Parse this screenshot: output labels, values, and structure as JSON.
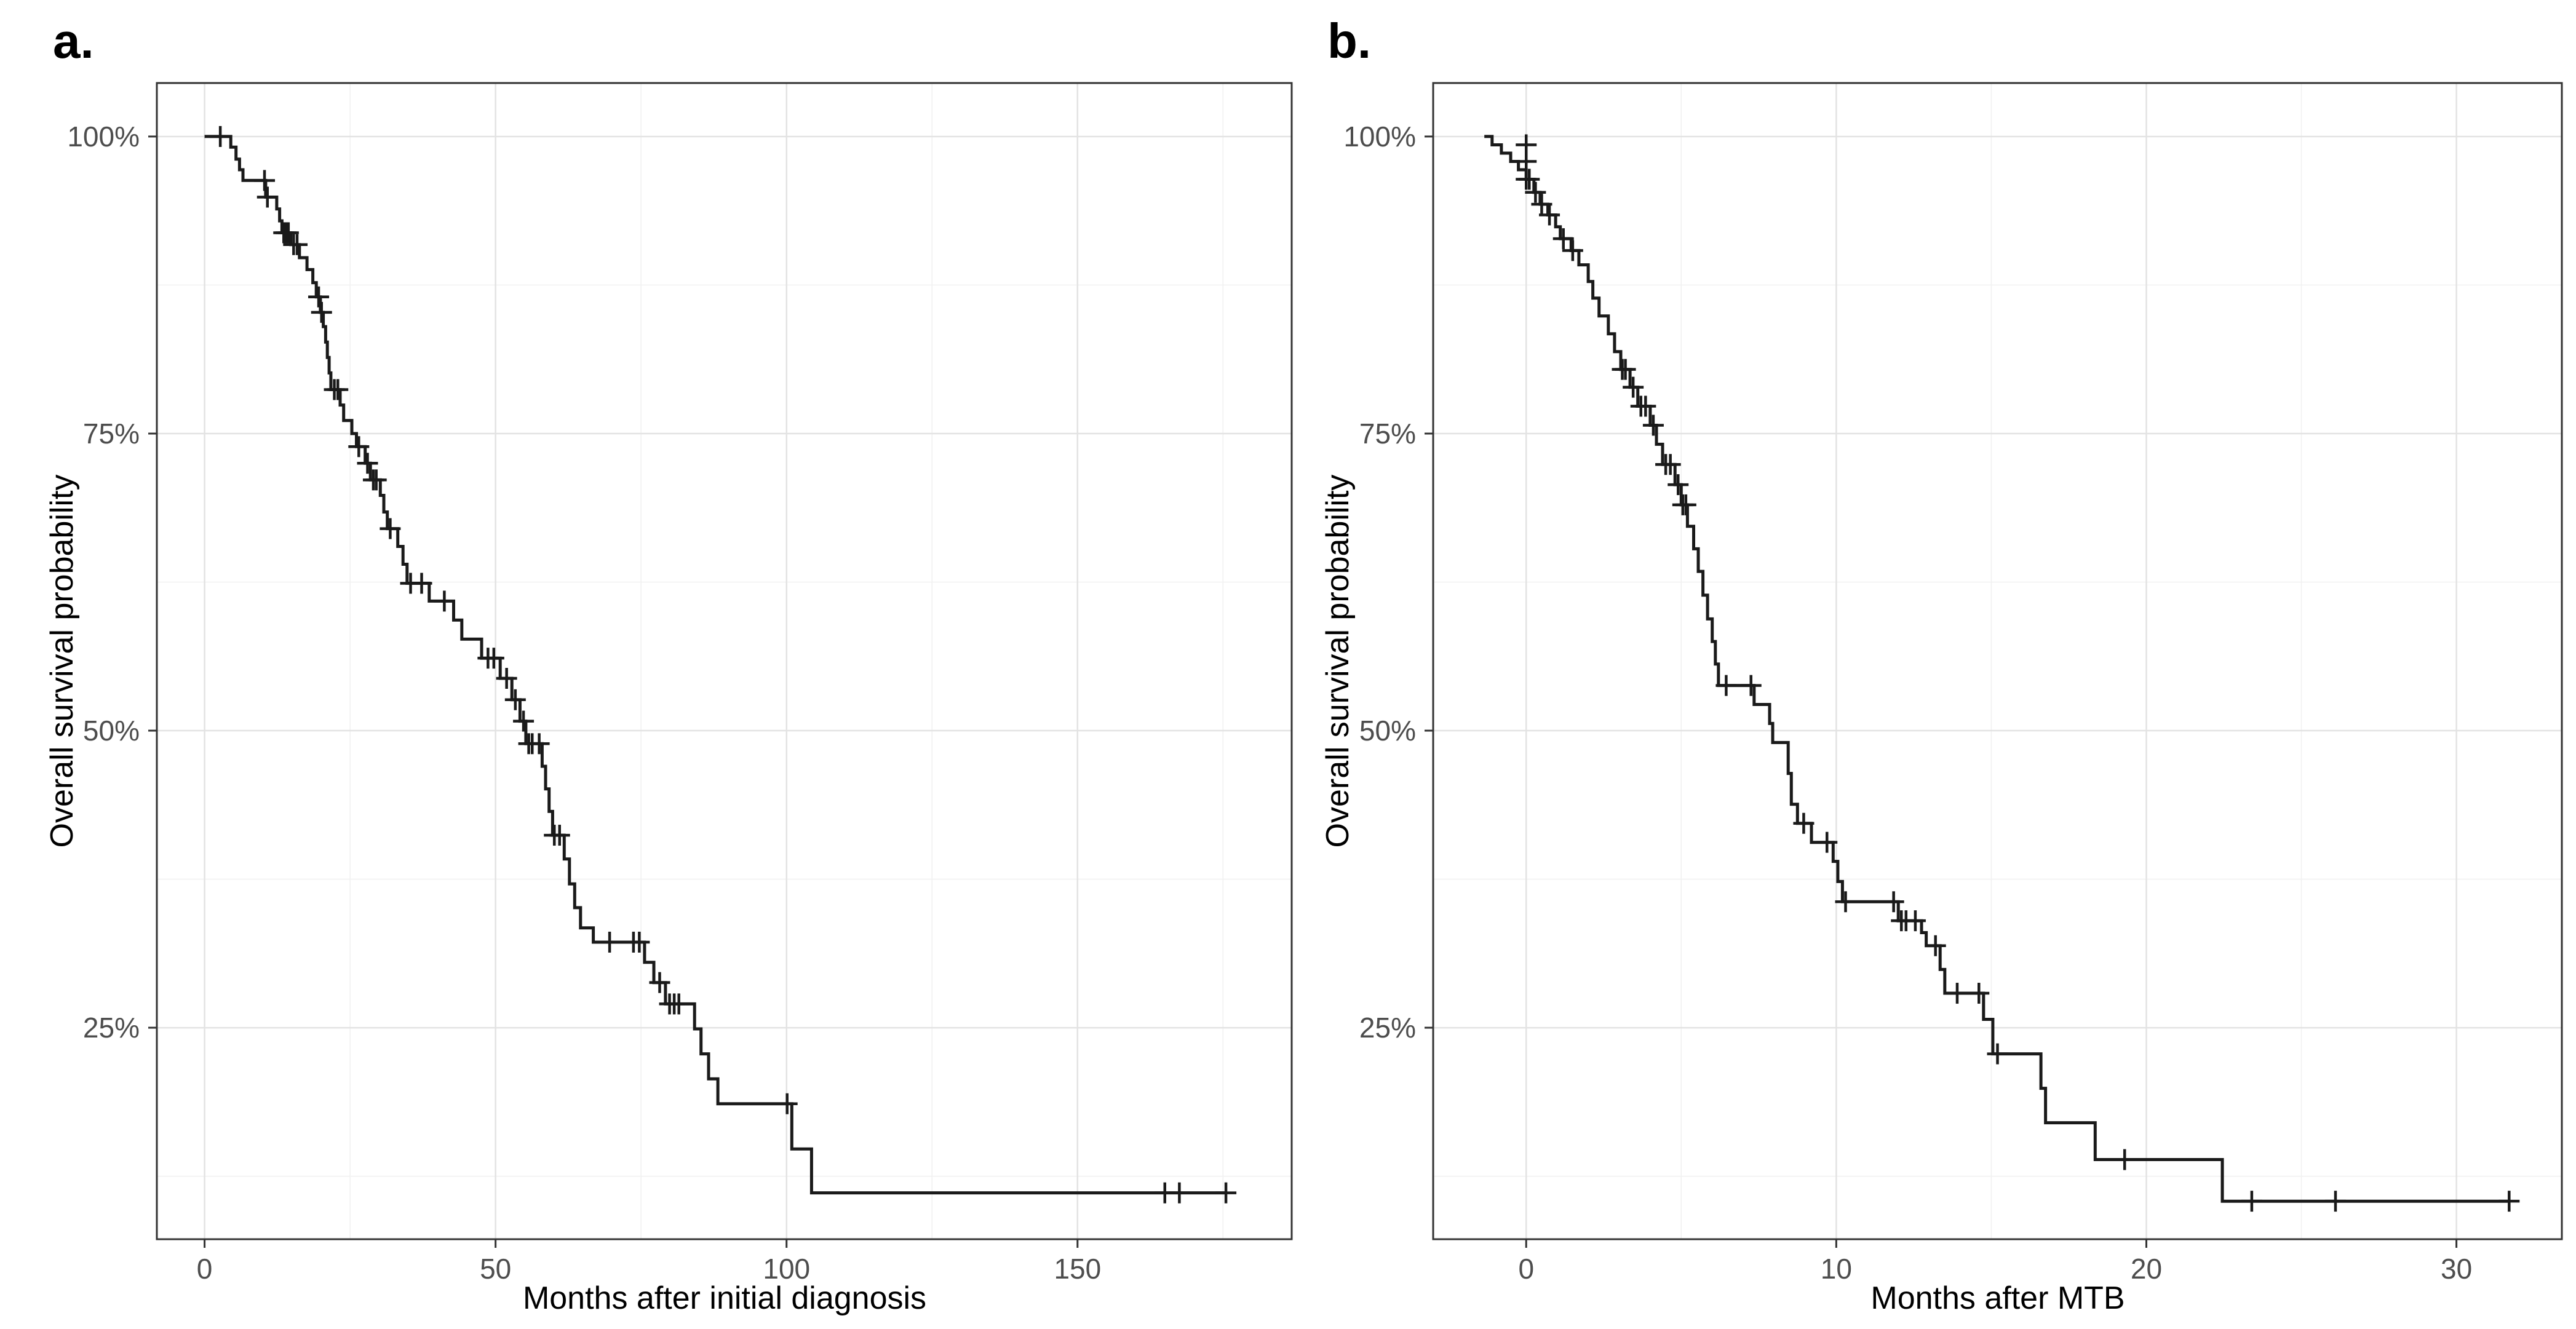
{
  "style": {
    "background": "#ffffff",
    "curve": "#1a1a1a",
    "grid_major": "#e3e3e3",
    "grid_minor": "#f1f1f1",
    "panel_border": "#343434",
    "tick": "#343434",
    "tick_label": "#4d4d4d",
    "axis_title": "#000000"
  },
  "chart_data": [
    {
      "type": "line",
      "subtype": "kaplan-meier-step",
      "panel_label": "a.",
      "xlabel": "Months after initial diagnosis",
      "ylabel": "Overall survival probability",
      "legend": "none",
      "grid": "on",
      "xlim": [
        -8.2,
        186.8
      ],
      "ylim": [
        7.2,
        104.5
      ],
      "x_ticks": [
        0,
        50,
        100,
        150
      ],
      "x_minor": [
        25,
        75,
        125,
        175
      ],
      "y_ticks": [
        {
          "value": 100,
          "label": "100%"
        },
        {
          "value": 75,
          "label": "75%"
        },
        {
          "value": 50,
          "label": "50%"
        },
        {
          "value": 25,
          "label": "25%"
        }
      ],
      "y_minor": [
        12.5,
        37.5,
        62.5,
        87.5
      ],
      "steps": [
        [
          0,
          100
        ],
        [
          4.5,
          99.1
        ],
        [
          5.4,
          98.1
        ],
        [
          6,
          97.2
        ],
        [
          6.6,
          96.3
        ],
        [
          10.5,
          94.9
        ],
        [
          12.4,
          93.9
        ],
        [
          12.9,
          92.9
        ],
        [
          13.3,
          91.9
        ],
        [
          14.8,
          90.9
        ],
        [
          16.3,
          89.8
        ],
        [
          17.6,
          88.8
        ],
        [
          18.6,
          87.7
        ],
        [
          19.2,
          86.5
        ],
        [
          19.9,
          85.2
        ],
        [
          20.4,
          84
        ],
        [
          20.8,
          82.7
        ],
        [
          21.1,
          81.4
        ],
        [
          21.4,
          80.1
        ],
        [
          21.7,
          78.7
        ],
        [
          23.3,
          77.4
        ],
        [
          23.9,
          76.1
        ],
        [
          25.3,
          75
        ],
        [
          26.1,
          73.9
        ],
        [
          27.6,
          72.5
        ],
        [
          28.5,
          71.1
        ],
        [
          30.2,
          69.8
        ],
        [
          30.8,
          68.4
        ],
        [
          31.4,
          67
        ],
        [
          33.2,
          65.5
        ],
        [
          34.1,
          64
        ],
        [
          34.8,
          62.4
        ],
        [
          38.6,
          60.9
        ],
        [
          42.8,
          59.3
        ],
        [
          44.2,
          57.7
        ],
        [
          47.6,
          56.1
        ],
        [
          50.8,
          54.4
        ],
        [
          52.8,
          52.6
        ],
        [
          54.2,
          50.8
        ],
        [
          55.2,
          48.9
        ],
        [
          58,
          47
        ],
        [
          58.6,
          45.1
        ],
        [
          59.2,
          43.2
        ],
        [
          59.8,
          41.2
        ],
        [
          61.8,
          39.2
        ],
        [
          62.7,
          37.1
        ],
        [
          63.6,
          35.1
        ],
        [
          64.6,
          33.4
        ],
        [
          66.8,
          32.2
        ],
        [
          75.6,
          30.5
        ],
        [
          77.2,
          28.8
        ],
        [
          79.2,
          27
        ],
        [
          84.2,
          24.9
        ],
        [
          85.3,
          22.8
        ],
        [
          86.6,
          20.7
        ],
        [
          88.2,
          18.6
        ],
        [
          100.9,
          14.8
        ],
        [
          104.3,
          11.1
        ]
      ],
      "end_time": 175.5,
      "censors": [
        [
          2.7,
          100
        ],
        [
          10.3,
          96.3
        ],
        [
          10.8,
          94.9
        ],
        [
          13.6,
          91.9
        ],
        [
          14,
          91.9
        ],
        [
          14.4,
          91.9
        ],
        [
          15.3,
          90.9
        ],
        [
          15.9,
          90.9
        ],
        [
          19.6,
          86.5
        ],
        [
          20.1,
          85.2
        ],
        [
          22.3,
          78.7
        ],
        [
          22.9,
          78.7
        ],
        [
          26.5,
          73.9
        ],
        [
          28,
          72.5
        ],
        [
          29,
          71.1
        ],
        [
          29.5,
          71.1
        ],
        [
          31.9,
          67
        ],
        [
          35.4,
          62.4
        ],
        [
          37.3,
          62.4
        ],
        [
          41.2,
          60.9
        ],
        [
          48.7,
          56.1
        ],
        [
          49.7,
          56.1
        ],
        [
          51.9,
          54.4
        ],
        [
          53.4,
          52.6
        ],
        [
          54.8,
          50.8
        ],
        [
          55.7,
          48.9
        ],
        [
          56.3,
          48.9
        ],
        [
          57.5,
          48.9
        ],
        [
          60.1,
          41.2
        ],
        [
          61,
          41.2
        ],
        [
          69.6,
          32.2
        ],
        [
          73.7,
          32.2
        ],
        [
          74.7,
          32.2
        ],
        [
          78.2,
          28.8
        ],
        [
          79.9,
          27
        ],
        [
          80.7,
          27
        ],
        [
          81.5,
          27
        ],
        [
          100.1,
          18.6
        ],
        [
          165,
          11.1
        ],
        [
          167.5,
          11.1
        ],
        [
          175.5,
          11.1
        ]
      ]
    },
    {
      "type": "line",
      "subtype": "kaplan-meier-step",
      "panel_label": "b.",
      "xlabel": "Months after MTB",
      "ylabel": "Overall survival probability",
      "legend": "none",
      "grid": "on",
      "xlim": [
        -3.0,
        33.4
      ],
      "ylim": [
        7.2,
        104.5
      ],
      "x_ticks": [
        0,
        10,
        20,
        30
      ],
      "x_minor": [
        5,
        15,
        25
      ],
      "y_ticks": [
        {
          "value": 100,
          "label": "100%"
        },
        {
          "value": 75,
          "label": "75%"
        },
        {
          "value": 50,
          "label": "50%"
        },
        {
          "value": 25,
          "label": "25%"
        }
      ],
      "y_minor": [
        12.5,
        37.5,
        62.5,
        87.5
      ],
      "steps": [
        [
          -1.35,
          100
        ],
        [
          -1.1,
          99.3
        ],
        [
          -0.8,
          98.6
        ],
        [
          -0.5,
          97.9
        ],
        [
          -0.25,
          97.2
        ],
        [
          0,
          96.4
        ],
        [
          0.25,
          95.3
        ],
        [
          0.45,
          94.3
        ],
        [
          0.7,
          93.4
        ],
        [
          0.95,
          92.4
        ],
        [
          1.1,
          91.4
        ],
        [
          1.45,
          90.4
        ],
        [
          1.7,
          89.2
        ],
        [
          2,
          87.8
        ],
        [
          2.15,
          86.4
        ],
        [
          2.35,
          84.9
        ],
        [
          2.65,
          83.4
        ],
        [
          2.85,
          81.9
        ],
        [
          3.05,
          80.4
        ],
        [
          3.35,
          78.9
        ],
        [
          3.6,
          77.3
        ],
        [
          4,
          75.7
        ],
        [
          4.2,
          74.1
        ],
        [
          4.4,
          72.4
        ],
        [
          4.8,
          70.7
        ],
        [
          5,
          69
        ],
        [
          5.2,
          67.2
        ],
        [
          5.4,
          65.3
        ],
        [
          5.55,
          63.4
        ],
        [
          5.7,
          61.4
        ],
        [
          5.85,
          59.4
        ],
        [
          6,
          57.5
        ],
        [
          6.1,
          55.6
        ],
        [
          6.2,
          53.8
        ],
        [
          7.35,
          52.2
        ],
        [
          7.85,
          50.6
        ],
        [
          7.95,
          49
        ],
        [
          8.45,
          46.4
        ],
        [
          8.55,
          43.8
        ],
        [
          8.75,
          42.2
        ],
        [
          9.2,
          40.6
        ],
        [
          9.9,
          39
        ],
        [
          10.05,
          37.3
        ],
        [
          10.2,
          35.6
        ],
        [
          12,
          34
        ],
        [
          12.75,
          33
        ],
        [
          12.9,
          31.9
        ],
        [
          13.35,
          29.9
        ],
        [
          13.5,
          27.9
        ],
        [
          14.75,
          25.7
        ],
        [
          15.05,
          22.8
        ],
        [
          16.6,
          19.9
        ],
        [
          16.75,
          17
        ],
        [
          18.35,
          13.9
        ],
        [
          22.45,
          10.4
        ]
      ],
      "end_time": 31.7,
      "censors": [
        [
          0,
          99.3
        ],
        [
          0,
          97.9
        ],
        [
          0,
          96.4
        ],
        [
          0.1,
          96.4
        ],
        [
          0.3,
          95.3
        ],
        [
          0.5,
          94.3
        ],
        [
          0.75,
          93.4
        ],
        [
          1.2,
          91.4
        ],
        [
          1.5,
          90.4
        ],
        [
          3.1,
          80.4
        ],
        [
          3.2,
          80.4
        ],
        [
          3.45,
          78.9
        ],
        [
          3.7,
          77.3
        ],
        [
          3.85,
          77.3
        ],
        [
          4.1,
          75.7
        ],
        [
          4.5,
          72.4
        ],
        [
          4.65,
          72.4
        ],
        [
          4.9,
          70.7
        ],
        [
          5.05,
          69
        ],
        [
          5.15,
          69
        ],
        [
          6.45,
          53.8
        ],
        [
          7.25,
          53.8
        ],
        [
          8.95,
          42.2
        ],
        [
          9.7,
          40.6
        ],
        [
          10.3,
          35.6
        ],
        [
          11.85,
          35.6
        ],
        [
          12.1,
          34
        ],
        [
          12.25,
          34
        ],
        [
          12.55,
          34
        ],
        [
          13.2,
          31.9
        ],
        [
          13.9,
          27.9
        ],
        [
          14.6,
          27.9
        ],
        [
          15.2,
          22.8
        ],
        [
          19.3,
          13.9
        ],
        [
          23.4,
          10.4
        ],
        [
          26.1,
          10.4
        ],
        [
          31.7,
          10.4
        ]
      ]
    }
  ]
}
